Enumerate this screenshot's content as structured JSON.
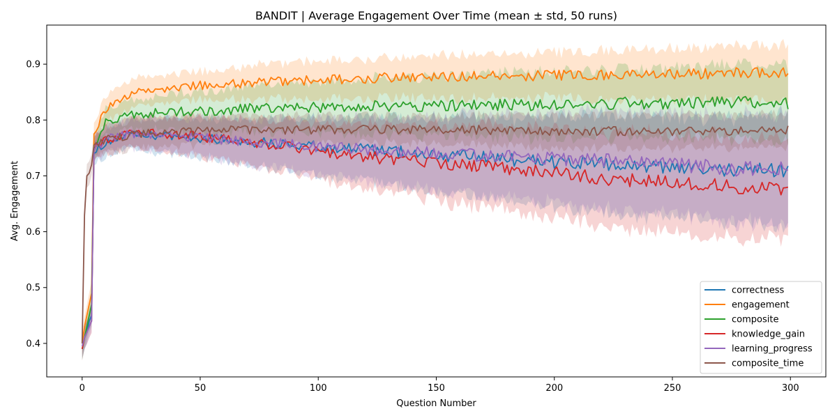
{
  "chart_data": {
    "type": "line",
    "title": "BANDIT | Average Engagement Over Time (mean ± std, 50 runs)",
    "xlabel": "Question Number",
    "ylabel": "Avg. Engagement",
    "xlim": [
      -15,
      315
    ],
    "ylim": [
      0.34,
      0.97
    ],
    "xticks": [
      0,
      50,
      100,
      150,
      200,
      250,
      300
    ],
    "yticks": [
      0.4,
      0.5,
      0.6,
      0.7,
      0.8,
      0.9
    ],
    "xtick_labels": [
      "0",
      "50",
      "100",
      "150",
      "200",
      "250",
      "300"
    ],
    "ytick_labels": [
      "0.4",
      "0.5",
      "0.6",
      "0.7",
      "0.8",
      "0.9"
    ],
    "grid": false,
    "legend_position": "lower-right",
    "band": "mean ± std",
    "series": [
      {
        "name": "correctness",
        "color": "#1f77b4",
        "x": [
          0,
          1,
          2,
          3,
          4,
          5,
          10,
          20,
          30,
          50,
          70,
          100,
          130,
          160,
          200,
          230,
          260,
          280,
          299
        ],
        "mean": [
          0.39,
          0.41,
          0.42,
          0.44,
          0.45,
          0.74,
          0.76,
          0.772,
          0.772,
          0.768,
          0.762,
          0.752,
          0.745,
          0.735,
          0.725,
          0.718,
          0.712,
          0.71,
          0.71
        ],
        "std": [
          0.02,
          0.02,
          0.02,
          0.02,
          0.02,
          0.02,
          0.025,
          0.025,
          0.03,
          0.035,
          0.04,
          0.05,
          0.06,
          0.07,
          0.08,
          0.09,
          0.09,
          0.095,
          0.1
        ]
      },
      {
        "name": "engagement",
        "color": "#ff7f0e",
        "x": [
          0,
          1,
          2,
          3,
          4,
          5,
          10,
          20,
          30,
          50,
          70,
          100,
          130,
          160,
          200,
          230,
          260,
          280,
          299
        ],
        "mean": [
          0.4,
          0.43,
          0.45,
          0.47,
          0.49,
          0.775,
          0.82,
          0.845,
          0.855,
          0.862,
          0.866,
          0.872,
          0.876,
          0.878,
          0.88,
          0.882,
          0.883,
          0.884,
          0.885
        ],
        "std": [
          0.02,
          0.02,
          0.02,
          0.02,
          0.02,
          0.02,
          0.025,
          0.025,
          0.025,
          0.025,
          0.03,
          0.035,
          0.035,
          0.04,
          0.04,
          0.045,
          0.045,
          0.05,
          0.05
        ]
      },
      {
        "name": "composite",
        "color": "#2ca02c",
        "x": [
          0,
          1,
          2,
          3,
          4,
          5,
          10,
          20,
          30,
          50,
          70,
          100,
          130,
          160,
          200,
          230,
          260,
          280,
          299
        ],
        "mean": [
          0.39,
          0.41,
          0.43,
          0.45,
          0.47,
          0.75,
          0.795,
          0.81,
          0.813,
          0.816,
          0.82,
          0.823,
          0.825,
          0.826,
          0.828,
          0.83,
          0.83,
          0.832,
          0.83
        ],
        "std": [
          0.02,
          0.02,
          0.02,
          0.02,
          0.02,
          0.02,
          0.025,
          0.025,
          0.03,
          0.035,
          0.04,
          0.045,
          0.05,
          0.055,
          0.06,
          0.06,
          0.065,
          0.065,
          0.07
        ]
      },
      {
        "name": "knowledge_gain",
        "color": "#d62728",
        "x": [
          0,
          1,
          2,
          3,
          4,
          5,
          10,
          20,
          30,
          50,
          70,
          100,
          130,
          160,
          200,
          230,
          260,
          280,
          299
        ],
        "mean": [
          0.39,
          0.41,
          0.42,
          0.43,
          0.44,
          0.745,
          0.765,
          0.775,
          0.777,
          0.77,
          0.76,
          0.745,
          0.73,
          0.72,
          0.705,
          0.692,
          0.685,
          0.68,
          0.675
        ],
        "std": [
          0.02,
          0.02,
          0.02,
          0.02,
          0.02,
          0.02,
          0.025,
          0.025,
          0.03,
          0.035,
          0.04,
          0.05,
          0.06,
          0.07,
          0.08,
          0.085,
          0.09,
          0.09,
          0.09
        ]
      },
      {
        "name": "learning_progress",
        "color": "#9467bd",
        "x": [
          0,
          1,
          2,
          3,
          4,
          5,
          10,
          20,
          30,
          50,
          70,
          100,
          130,
          160,
          200,
          230,
          260,
          280,
          299
        ],
        "mean": [
          0.395,
          0.41,
          0.42,
          0.43,
          0.44,
          0.745,
          0.765,
          0.775,
          0.773,
          0.768,
          0.762,
          0.752,
          0.745,
          0.738,
          0.73,
          0.725,
          0.718,
          0.712,
          0.715
        ],
        "std": [
          0.02,
          0.02,
          0.02,
          0.02,
          0.02,
          0.02,
          0.025,
          0.025,
          0.03,
          0.035,
          0.04,
          0.05,
          0.06,
          0.07,
          0.08,
          0.09,
          0.09,
          0.095,
          0.1
        ]
      },
      {
        "name": "composite_time",
        "color": "#8c564b",
        "x": [
          0,
          1,
          2,
          3,
          4,
          5,
          10,
          20,
          30,
          50,
          70,
          100,
          130,
          160,
          200,
          230,
          260,
          280,
          299
        ],
        "mean": [
          0.4,
          0.63,
          0.7,
          0.705,
          0.72,
          0.755,
          0.765,
          0.772,
          0.776,
          0.78,
          0.782,
          0.783,
          0.783,
          0.783,
          0.78,
          0.78,
          0.78,
          0.78,
          0.782
        ],
        "std": [
          0.02,
          0.02,
          0.02,
          0.02,
          0.02,
          0.02,
          0.025,
          0.025,
          0.025,
          0.025,
          0.025,
          0.025,
          0.025,
          0.025,
          0.03,
          0.03,
          0.03,
          0.03,
          0.03
        ]
      }
    ]
  }
}
